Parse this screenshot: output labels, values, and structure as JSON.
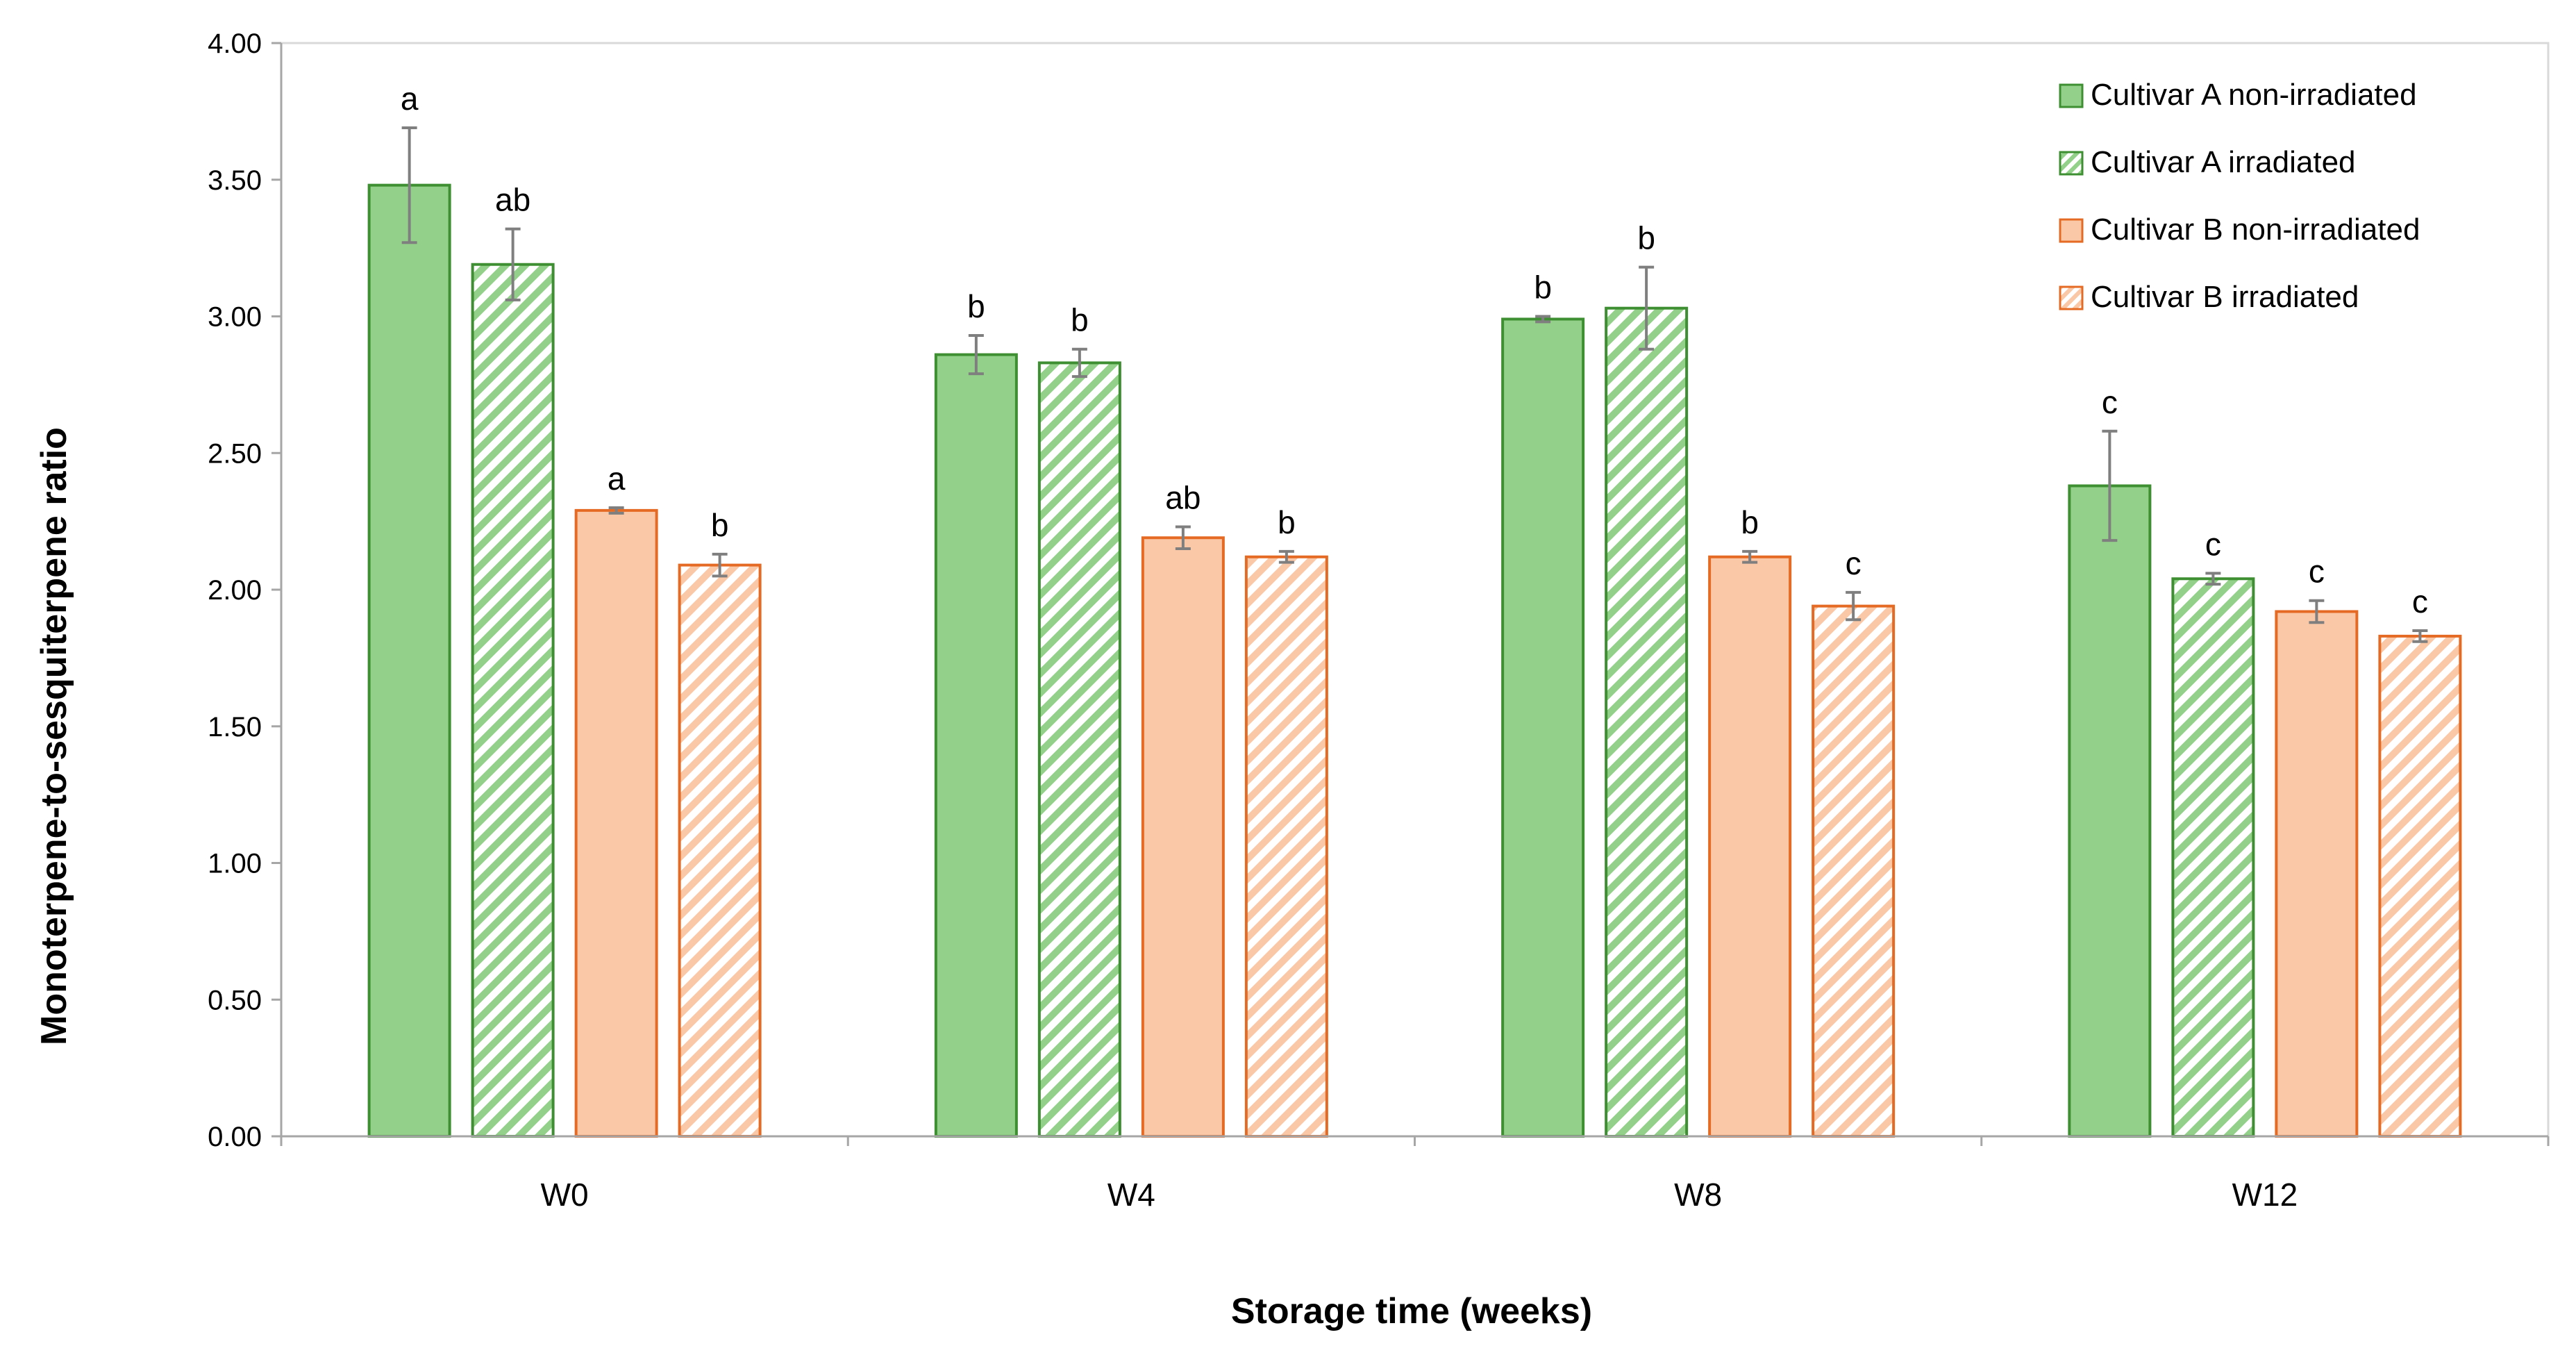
{
  "chart_data": {
    "type": "bar",
    "title": "",
    "xlabel": "Storage time (weeks)",
    "ylabel": "Monoterpene-to-sesquiterpene ratio",
    "ylim": [
      0,
      4
    ],
    "yticks": [
      "0.00",
      "0.50",
      "1.00",
      "1.50",
      "2.00",
      "2.50",
      "3.00",
      "3.50",
      "4.00"
    ],
    "grid": false,
    "legend_position": "top-right",
    "categories": [
      "W0",
      "W4",
      "W8",
      "W12"
    ],
    "series": [
      {
        "name": "Cultivar A non-irradiated",
        "pattern": "solid",
        "fill": "#93d18a",
        "stroke": "#3e8f31",
        "values": [
          3.48,
          2.86,
          2.99,
          2.38
        ],
        "errors": [
          0.21,
          0.07,
          0.01,
          0.2
        ],
        "letters": [
          "a",
          "b",
          "b",
          "c"
        ]
      },
      {
        "name": "Cultivar A irradiated",
        "pattern": "hatched",
        "fill": "#93d18a",
        "stroke": "#3e8f31",
        "values": [
          3.19,
          2.83,
          3.03,
          2.04
        ],
        "errors": [
          0.13,
          0.05,
          0.15,
          0.02
        ],
        "letters": [
          "ab",
          "b",
          "b",
          "c"
        ]
      },
      {
        "name": "Cultivar B non-irradiated",
        "pattern": "solid",
        "fill": "#fbc8a7",
        "stroke": "#e56b25",
        "values": [
          2.29,
          2.19,
          2.12,
          1.92
        ],
        "errors": [
          0.01,
          0.04,
          0.02,
          0.04
        ],
        "letters": [
          "a",
          "ab",
          "b",
          "c"
        ]
      },
      {
        "name": "Cultivar B irradiated",
        "pattern": "hatched",
        "fill": "#fbc8a7",
        "stroke": "#e56b25",
        "values": [
          2.09,
          2.12,
          1.94,
          1.83
        ],
        "errors": [
          0.04,
          0.02,
          0.05,
          0.02
        ],
        "letters": [
          "b",
          "b",
          "c",
          "c"
        ]
      }
    ],
    "error_bar_color": "#7f7f7f",
    "axis_color": "#a6a6a6"
  }
}
